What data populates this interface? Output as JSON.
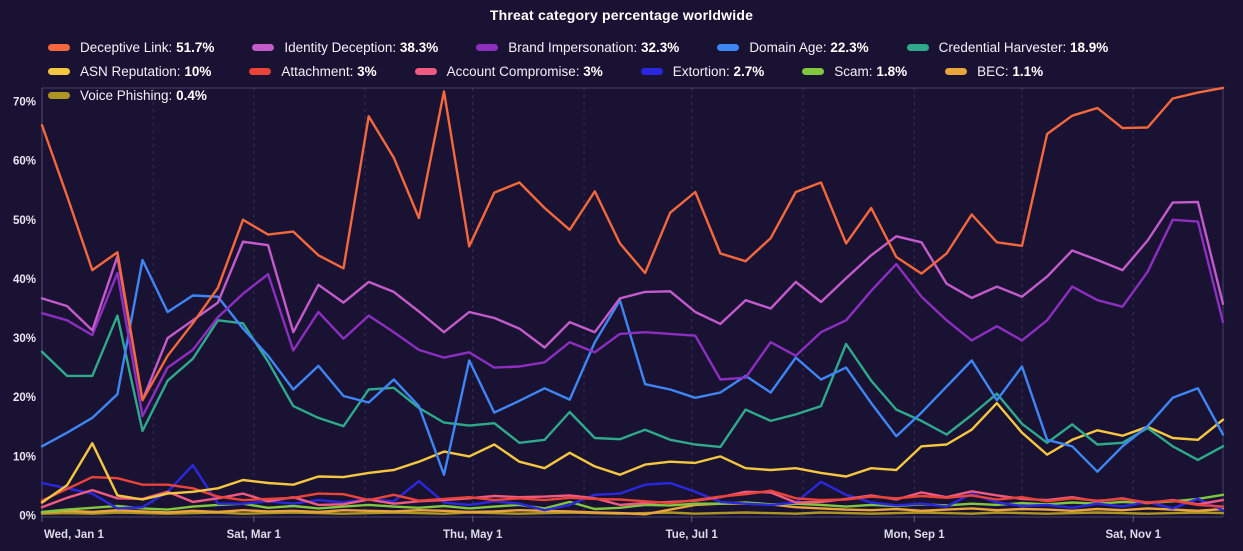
{
  "title": "Threat category percentage worldwide",
  "chart_data": {
    "type": "line",
    "title": "Threat category percentage worldwide",
    "background_color": "#1a1233",
    "legend_position": "top-left, two rows",
    "grid": "vertical dashed monthly gridlines only",
    "points_interval": "weekly",
    "num_points": 48,
    "total_days": 329,
    "ylim": [
      0,
      72.3
    ],
    "y_axis": {
      "tick_values": [
        0,
        10,
        20,
        30,
        40,
        50,
        60,
        70
      ],
      "tick_suffix": "%"
    },
    "x_axis": {
      "gridline_day_offsets": [
        0,
        31,
        59,
        90,
        120,
        151,
        181,
        212,
        243,
        273,
        304
      ],
      "ticks": [
        {
          "label": "Wed, Jan 1",
          "day": 0
        },
        {
          "label": "Sat, Mar 1",
          "day": 59
        },
        {
          "label": "Thu, May 1",
          "day": 120
        },
        {
          "label": "Tue, Jul 1",
          "day": 181
        },
        {
          "label": "Mon, Sep 1",
          "day": 243
        },
        {
          "label": "Sat, Nov 1",
          "day": 304
        }
      ]
    },
    "series": [
      {
        "name": "Deceptive Link",
        "legend_value": "51.7%",
        "color": "#F4683C",
        "values": [
          66,
          54,
          41.5,
          44.5,
          19.5,
          27,
          32.5,
          38.5,
          50,
          47.5,
          48,
          44,
          41.8,
          67.5,
          60.5,
          50.3,
          71.7,
          45.5,
          54.6,
          56.3,
          52,
          48.3,
          54.8,
          46,
          41,
          51.2,
          54.7,
          44.3,
          43,
          46.9,
          54.7,
          56.3,
          46,
          52,
          43.7,
          40.9,
          44.3,
          50.9,
          46.2,
          45.6,
          64.5,
          67.6,
          68.9,
          65.5,
          65.6,
          70.5,
          71.5,
          72.3
        ]
      },
      {
        "name": "Identity Deception",
        "legend_value": "38.3%",
        "color": "#C35BCB",
        "values": [
          36.7,
          35.4,
          31.3,
          43.8,
          19.5,
          30,
          33,
          36,
          46.3,
          45.7,
          31,
          39,
          36,
          39.5,
          37.8,
          34.5,
          31,
          34.4,
          33.4,
          31.6,
          28.4,
          32.7,
          31,
          36.7,
          37.8,
          37.9,
          34.4,
          32.4,
          36.4,
          35,
          39.5,
          36.1,
          40.1,
          44,
          47.2,
          46.2,
          39.2,
          36.8,
          38.7,
          37,
          40.4,
          44.8,
          43.2,
          41.5,
          46.5,
          52.9,
          53,
          35.8
        ]
      },
      {
        "name": "Brand Impersonation",
        "legend_value": "32.3%",
        "color": "#8C2EBF",
        "values": [
          34.2,
          33,
          30.5,
          41,
          16.8,
          25,
          28,
          33.5,
          37.5,
          40.8,
          27.9,
          34.4,
          29.9,
          33.8,
          31,
          28,
          26.7,
          27.6,
          25,
          25.2,
          25.9,
          29.3,
          27.6,
          30.7,
          31,
          30.7,
          30.4,
          23,
          23.3,
          29.3,
          27,
          31,
          33,
          38,
          42.5,
          37,
          33,
          29.6,
          32,
          29.6,
          33,
          38.7,
          36.4,
          35.3,
          41.2,
          50,
          49.7,
          32.7
        ]
      },
      {
        "name": "Domain Age",
        "legend_value": "22.3%",
        "color": "#3E86F5",
        "values": [
          11.7,
          14,
          16.5,
          20.5,
          43.2,
          34.4,
          37.2,
          37,
          31.6,
          27,
          21.3,
          25.3,
          20.2,
          19.1,
          23,
          18.5,
          6.9,
          26.2,
          17.4,
          19.4,
          21.5,
          19.6,
          29.3,
          36.4,
          22.2,
          21.3,
          19.9,
          20.8,
          23.6,
          20.8,
          26.7,
          23,
          25,
          19,
          13.4,
          17.4,
          21.8,
          26.2,
          19.5,
          25.2,
          12.8,
          11.7,
          7.4,
          11.7,
          15.1,
          19.9,
          21.5,
          13.7
        ]
      },
      {
        "name": "Credential Harvester",
        "legend_value": "18.9%",
        "color": "#2EA98C",
        "values": [
          27.7,
          23.6,
          23.6,
          33.8,
          14.3,
          22.8,
          26.5,
          33,
          32.5,
          26,
          18.5,
          16.5,
          15.1,
          21.3,
          21.6,
          18.2,
          15.7,
          15.2,
          15.6,
          12.3,
          12.8,
          17.5,
          13.1,
          12.9,
          14.5,
          12.8,
          12,
          11.6,
          17.9,
          16,
          17.1,
          18.5,
          29,
          22.8,
          17.9,
          16,
          13.7,
          17,
          20.6,
          15.5,
          12.3,
          15.4,
          12,
          12.3,
          14.8,
          11.7,
          9.4,
          11.7
        ]
      },
      {
        "name": "ASN Reputation",
        "legend_value": "10%",
        "color": "#F5C63F",
        "values": [
          2.2,
          5.1,
          12.2,
          3.4,
          2.7,
          3.7,
          4,
          4.6,
          6,
          5.5,
          5.2,
          6.6,
          6.5,
          7.2,
          7.7,
          9.1,
          10.8,
          10,
          12,
          9.1,
          8,
          10.6,
          8.3,
          6.9,
          8.6,
          9.1,
          8.9,
          10,
          8,
          7.7,
          8,
          7.2,
          6.6,
          8,
          7.7,
          11.7,
          12,
          14.5,
          19,
          14,
          10.3,
          12.8,
          14.4,
          13.5,
          15,
          13.1,
          12.8,
          16.2
        ]
      },
      {
        "name": "Attachment",
        "legend_value": "3%",
        "color": "#EA4439",
        "values": [
          2.5,
          4.5,
          6.5,
          6.3,
          5.2,
          5.2,
          4.6,
          3.2,
          2.6,
          2.8,
          3,
          3.7,
          3.6,
          2.6,
          3.5,
          2.5,
          2.8,
          3.1,
          2.6,
          2.9,
          2.6,
          3,
          2.8,
          2.7,
          2.4,
          2.1,
          2.6,
          3.2,
          3.6,
          4.2,
          2.9,
          2.6,
          2.7,
          3.2,
          2.9,
          3.3,
          3,
          3.4,
          2.7,
          3.1,
          2.4,
          2.9,
          2.5,
          2.8,
          2.2,
          2.5,
          1.8,
          1.5
        ]
      },
      {
        "name": "Account Compromise",
        "legend_value": "3%",
        "color": "#F05A80",
        "values": [
          1.4,
          3,
          4.3,
          2.9,
          2.8,
          4,
          2.3,
          2.9,
          3.7,
          2.4,
          3.1,
          1.8,
          1.9,
          2.7,
          2,
          2.4,
          2.6,
          2.9,
          3.3,
          3.1,
          3.2,
          3.4,
          2.9,
          1.8,
          2.1,
          2.3,
          2.5,
          3.1,
          4,
          3.9,
          2.2,
          2.3,
          2.8,
          3.4,
          2.7,
          3.9,
          3.1,
          4.1,
          3.4,
          2.8,
          2.6,
          3.1,
          2.4,
          2.9,
          2.1,
          2.6,
          1.9,
          2.6
        ]
      },
      {
        "name": "Extortion",
        "legend_value": "2.7%",
        "color": "#2A28DF",
        "values": [
          5.5,
          4.6,
          3.7,
          1.2,
          1.4,
          4,
          8.5,
          2,
          2,
          2.4,
          2,
          2.6,
          2.2,
          2.8,
          2.4,
          5.8,
          2.2,
          1.8,
          2.4,
          2,
          0.9,
          1.8,
          3.5,
          3.7,
          5.2,
          5.5,
          4,
          2.3,
          2,
          1.8,
          2.2,
          5.7,
          3.5,
          2.2,
          1.7,
          2,
          1.5,
          3.7,
          2.2,
          1.6,
          1.8,
          1.3,
          2,
          1.5,
          2.3,
          1.2,
          2.8,
          0.9
        ]
      },
      {
        "name": "Scam",
        "legend_value": "1.8%",
        "color": "#7FC73E",
        "values": [
          0.6,
          1,
          1.3,
          1.6,
          1.2,
          1,
          1.5,
          1.8,
          2,
          1.3,
          1.6,
          1.2,
          1.5,
          1.8,
          1.5,
          1.3,
          1.6,
          1.2,
          1.5,
          1.8,
          1.2,
          2.3,
          1.1,
          1.3,
          1.8,
          1.7,
          2,
          2,
          2.2,
          1.9,
          2,
          1.8,
          1.5,
          1.8,
          1.6,
          1.9,
          1.7,
          2,
          1.8,
          2.1,
          1.9,
          2.2,
          2,
          2.3,
          2.1,
          2.4,
          2.8,
          3.5
        ]
      },
      {
        "name": "BEC",
        "legend_value": "1.1%",
        "color": "#E9A43B",
        "values": [
          0.5,
          0.8,
          0.6,
          0.9,
          0.7,
          0.5,
          0.8,
          0.6,
          0.9,
          0.7,
          0.8,
          0.6,
          0.9,
          0.8,
          0.7,
          0.9,
          0.8,
          0.6,
          0.7,
          0.9,
          0.8,
          0.7,
          0.5,
          0.4,
          0.2,
          1,
          1.8,
          2,
          2,
          1.9,
          1.4,
          1.2,
          1,
          0.9,
          1.1,
          0.8,
          1,
          1.2,
          0.9,
          1.1,
          1,
          0.8,
          1.1,
          0.9,
          1.2,
          1,
          0.8,
          1.1
        ]
      },
      {
        "name": "Voice Phishing",
        "legend_value": "0.4%",
        "color": "#AD9524",
        "values": [
          0.3,
          0.4,
          0.3,
          0.5,
          0.4,
          0.3,
          0.4,
          0.5,
          0.3,
          0.4,
          0.5,
          0.4,
          0.3,
          0.4,
          0.5,
          0.4,
          0.3,
          0.5,
          0.4,
          0.3,
          0.4,
          0.5,
          0.4,
          0.3,
          0.4,
          0.5,
          0.3,
          0.4,
          0.5,
          0.4,
          0.3,
          0.5,
          0.4,
          0.3,
          0.4,
          0.5,
          0.4,
          0.3,
          0.5,
          0.4,
          0.3,
          0.4,
          0.5,
          0.4,
          0.3,
          0.4,
          0.5,
          0.4
        ]
      }
    ]
  },
  "colors": {
    "background": "#1a1233",
    "gridline": "rgba(150,158,210,0.22)",
    "border": "rgba(165,172,220,0.30)",
    "axis_text": "#e9e8f2"
  }
}
